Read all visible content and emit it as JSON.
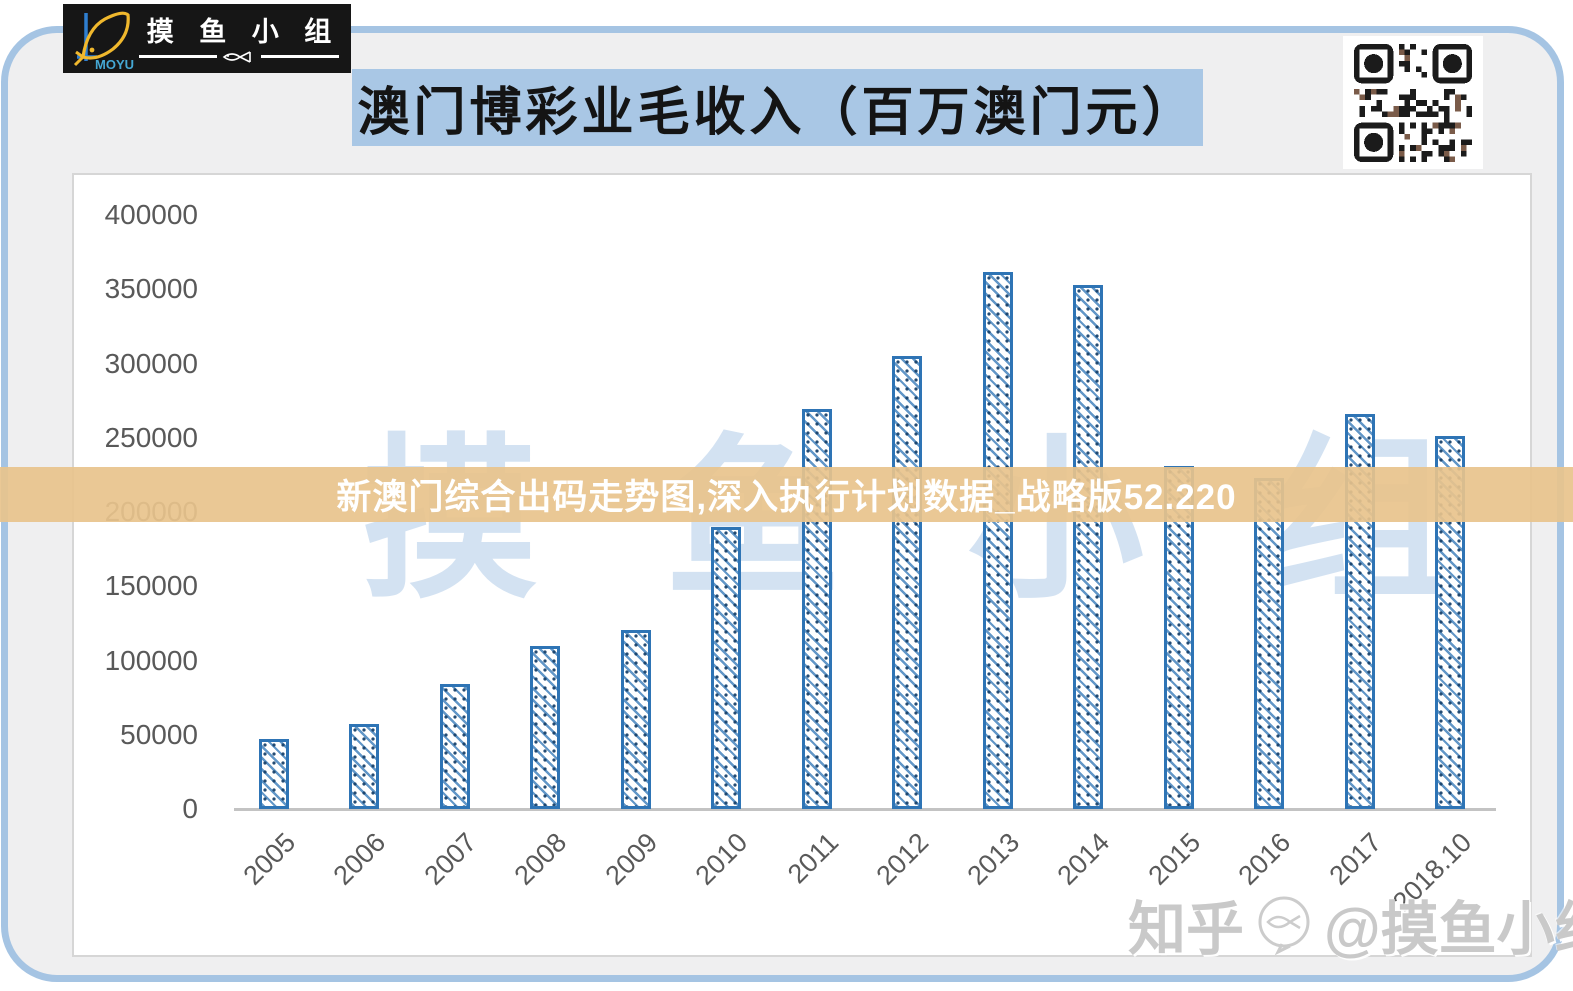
{
  "logo": {
    "brand": "MOYU",
    "group_name": "摸 鱼 小 组"
  },
  "header": {
    "title": "澳门博彩业毛收入（百万澳门元）"
  },
  "overlay_banner": {
    "text": "新澳门综合出码走势图,深入执行计划数据_战略版52.220"
  },
  "watermarks": {
    "chart_watermark": "摸 鱼 小 组",
    "credit_site": "知乎",
    "credit_handle": "@摸鱼小组"
  },
  "chart_data": {
    "type": "bar",
    "title": "澳门博彩业毛收入（百万澳门元）",
    "unit": "百万澳门元",
    "categories": [
      "2005",
      "2006",
      "2007",
      "2008",
      "2009",
      "2010",
      "2011",
      "2012",
      "2013",
      "2014",
      "2015",
      "2016",
      "2017",
      "2018.10"
    ],
    "values": [
      47134,
      57521,
      83847,
      109826,
      120383,
      189588,
      269058,
      305235,
      361866,
      352714,
      230840,
      223210,
      265743,
      251450
    ],
    "ylim": [
      0,
      400000
    ],
    "yticks": [
      400000,
      350000,
      300000,
      250000,
      200000,
      150000,
      100000,
      50000,
      0
    ],
    "grid": false,
    "legend": null,
    "bar_style": {
      "fill": "#ffffff",
      "hatch": "diagonal-down-with-dots",
      "border": "#2e74b5"
    }
  },
  "colors": {
    "card_bg": "#efeff0",
    "card_border": "#a5c4e3",
    "title_bg": "#a9c7e5",
    "banner_bg": "rgba(232,195,140,0.92)",
    "bar_border": "#2e74b5",
    "axis_text": "#595959",
    "watermark_blue": "rgba(187,210,235,0.65)",
    "credit_gray": "#c9c9c9"
  }
}
